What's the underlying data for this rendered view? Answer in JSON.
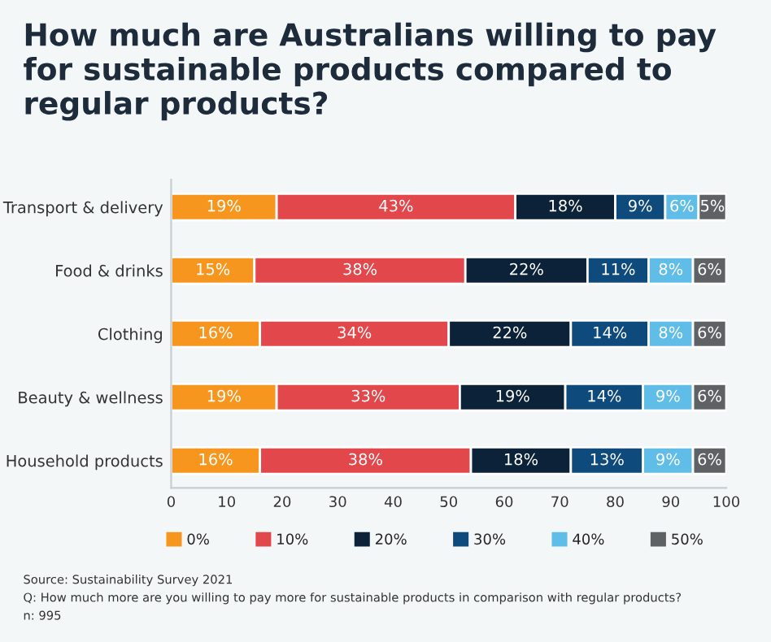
{
  "chart_data": {
    "type": "bar",
    "orientation": "horizontal",
    "stacked": true,
    "title": "How much are Australians willing to pay for sustainable products compared to regular products?",
    "categories": [
      "Transport & delivery",
      "Food & drinks",
      "Clothing",
      "Beauty & wellness",
      "Household products"
    ],
    "series": [
      {
        "name": "0%",
        "color": "#f7961e",
        "values": [
          19,
          15,
          16,
          19,
          16
        ],
        "value_labels": [
          "19%",
          "15%",
          "16%",
          "19%",
          "16%"
        ]
      },
      {
        "name": "10%",
        "color": "#e2474b",
        "values": [
          43,
          38,
          34,
          33,
          38
        ],
        "value_labels": [
          "43%",
          "38%",
          "34%",
          "33%",
          "38%"
        ]
      },
      {
        "name": "20%",
        "color": "#0b2239",
        "values": [
          18,
          22,
          22,
          19,
          18
        ],
        "value_labels": [
          "18%",
          "22%",
          "22%",
          "19%",
          "18%"
        ]
      },
      {
        "name": "30%",
        "color": "#0e4a7c",
        "values": [
          9,
          11,
          14,
          14,
          13
        ],
        "value_labels": [
          "9%",
          "11%",
          "14%",
          "14%",
          "13%"
        ]
      },
      {
        "name": "40%",
        "color": "#5fbde8",
        "values": [
          6,
          8,
          8,
          9,
          9
        ],
        "value_labels": [
          "6%",
          "8%",
          "8%",
          "9%",
          "9%"
        ]
      },
      {
        "name": "50%",
        "color": "#5f6264",
        "values": [
          5,
          6,
          6,
          6,
          6
        ],
        "value_labels": [
          "5%",
          "6%",
          "6%",
          "6%",
          "6%"
        ]
      }
    ],
    "xlim": [
      0,
      100
    ],
    "xticks": [
      0,
      10,
      20,
      30,
      40,
      50,
      60,
      70,
      80,
      90,
      100
    ],
    "grid": false,
    "legend": "bottom",
    "annotations": [
      "Source: Sustainability Survey 2021",
      "Q: How much more are you willing to pay more for sustainable products in comparison with regular products?",
      "n: 995"
    ]
  }
}
